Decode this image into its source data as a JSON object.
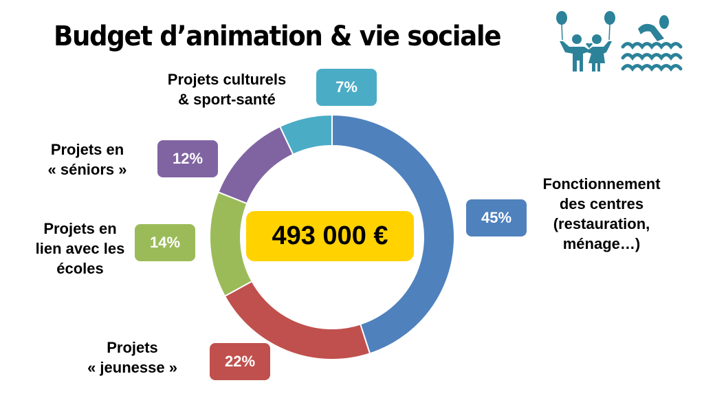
{
  "header": {
    "title": "Budget d’animation & vie sociale"
  },
  "icons": {
    "left": "children-balloons-icon",
    "right": "swimmer-waves-icon",
    "color": "#2b8299"
  },
  "total": {
    "value": "493 000 €",
    "bg_color": "#ffd200"
  },
  "segments": [
    {
      "key": "fonctionnement",
      "percent_label": "45%",
      "label_lines": [
        "Fonctionnement",
        "des centres",
        "(restauration,",
        "ménage…)"
      ],
      "color": "#4f81bd"
    },
    {
      "key": "jeunesse",
      "percent_label": "22%",
      "label_lines": [
        "Projets",
        "« jeunesse »"
      ],
      "color": "#c0504d"
    },
    {
      "key": "ecoles",
      "percent_label": "14%",
      "label_lines": [
        "Projets en",
        "lien avec les",
        "écoles"
      ],
      "color": "#9bbb59"
    },
    {
      "key": "seniors",
      "percent_label": "12%",
      "label_lines": [
        "Projets en",
        "« séniors »"
      ],
      "color": "#8064a2"
    },
    {
      "key": "culturels",
      "percent_label": "7%",
      "label_lines": [
        "Projets culturels",
        "& sport-santé"
      ],
      "color": "#4bacc6"
    }
  ],
  "chart_data": {
    "type": "pie",
    "subtype": "donut",
    "title": "Budget d’animation & vie sociale",
    "center_label": "493 000 €",
    "categories": [
      "Fonctionnement des centres (restauration, ménage…)",
      "Projets « jeunesse »",
      "Projets en lien avec les écoles",
      "Projets en « séniors »",
      "Projets culturels & sport-santé"
    ],
    "values": [
      45,
      22,
      14,
      12,
      7
    ],
    "unit": "%",
    "colors": [
      "#4f81bd",
      "#c0504d",
      "#9bbb59",
      "#8064a2",
      "#4bacc6"
    ],
    "start_angle": "12 o'clock, clockwise",
    "legend": "none (data labels beside segments)"
  }
}
